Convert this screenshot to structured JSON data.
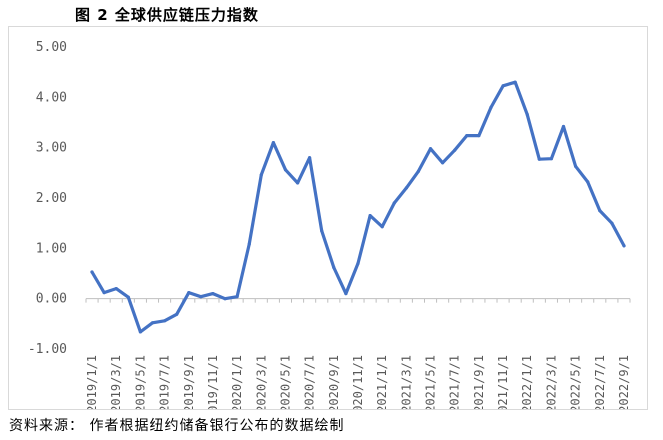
{
  "figure": {
    "title": "图 2 全球供应链压力指数",
    "source": "资料来源：  作者根据纽约储备银行公布的数据绘制"
  },
  "colors": {
    "line": "#4472C4",
    "axis": "#bfbfbf",
    "tick_text": "#595959"
  },
  "chart_data": {
    "type": "line",
    "title": "",
    "xlabel": "",
    "ylabel": "",
    "ylim": [
      -1.0,
      5.0
    ],
    "y_ticks": [
      "-1.00",
      "0.00",
      "1.00",
      "2.00",
      "3.00",
      "4.00",
      "5.00"
    ],
    "y_tick_values": [
      -1,
      0,
      1,
      2,
      3,
      4,
      5
    ],
    "grid": false,
    "legend": "none",
    "x": [
      "2019/1/1",
      "2019/2/1",
      "2019/3/1",
      "2019/4/1",
      "2019/5/1",
      "2019/6/1",
      "2019/7/1",
      "2019/8/1",
      "2019/9/1",
      "2019/10/1",
      "2019/11/1",
      "2019/12/1",
      "2020/1/1",
      "2020/2/1",
      "2020/3/1",
      "2020/4/1",
      "2020/5/1",
      "2020/6/1",
      "2020/7/1",
      "2020/8/1",
      "2020/9/1",
      "2020/10/1",
      "2020/11/1",
      "2020/12/1",
      "2021/1/1",
      "2021/2/1",
      "2021/3/1",
      "2021/4/1",
      "2021/5/1",
      "2021/6/1",
      "2021/7/1",
      "2021/8/1",
      "2021/9/1",
      "2021/10/1",
      "2021/11/1",
      "2021/12/1",
      "2022/1/1",
      "2022/2/1",
      "2022/3/1",
      "2022/4/1",
      "2022/5/1",
      "2022/6/1",
      "2022/7/1",
      "2022/8/1",
      "2022/9/1"
    ],
    "x_tick_labels": [
      "2019/1/1",
      "2019/3/1",
      "2019/5/1",
      "2019/7/1",
      "2019/9/1",
      "2019/11/1",
      "2020/1/1",
      "2020/3/1",
      "2020/5/1",
      "2020/7/1",
      "2020/9/1",
      "2020/11/1",
      "2021/1/1",
      "2021/3/1",
      "2021/5/1",
      "2021/7/1",
      "2021/9/1",
      "2021/11/1",
      "2022/1/1",
      "2022/3/1",
      "2022/5/1",
      "2022/7/1",
      "2022/9/1"
    ],
    "series": [
      {
        "values": [
          0.53,
          0.12,
          0.2,
          0.03,
          -0.66,
          -0.48,
          -0.44,
          -0.31,
          0.12,
          0.04,
          0.1,
          0.0,
          0.04,
          1.08,
          2.46,
          3.1,
          2.56,
          2.3,
          2.8,
          1.35,
          0.62,
          0.1,
          0.7,
          1.65,
          1.43,
          1.9,
          2.2,
          2.53,
          2.98,
          2.7,
          2.95,
          3.24,
          3.24,
          3.8,
          4.23,
          4.3,
          3.66,
          2.77,
          2.78,
          3.42,
          2.63,
          2.32,
          1.75,
          1.5,
          1.05
        ]
      }
    ]
  }
}
